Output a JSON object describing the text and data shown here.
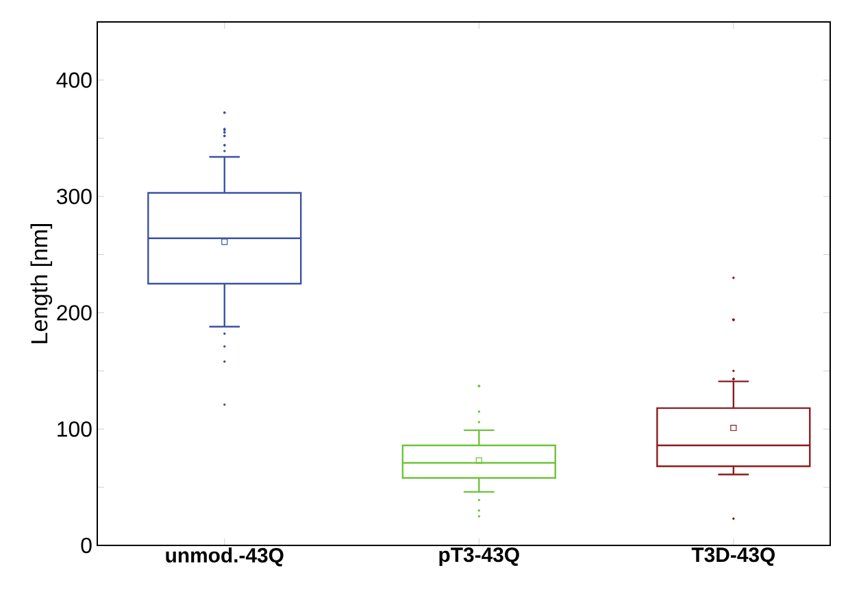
{
  "chart_data": {
    "type": "box",
    "ylabel": "Length [nm]",
    "categories": [
      "unmod.-43Q",
      "pT3-43Q",
      "T3D-43Q"
    ],
    "colors": [
      "#3a52a4",
      "#6cc43a",
      "#8b1a1a"
    ],
    "boxes": [
      {
        "low": 188,
        "q1": 225,
        "median": 264,
        "q3": 303,
        "high": 334,
        "mean": 261,
        "outliers": [
          372,
          372,
          358,
          357,
          355,
          355,
          352,
          352,
          344,
          344,
          339,
          182,
          171,
          158,
          121
        ]
      },
      {
        "low": 46,
        "q1": 58,
        "median": 71,
        "q3": 86,
        "high": 99,
        "mean": 73,
        "outliers": [
          137,
          137,
          137,
          115,
          106,
          39,
          30,
          25
        ]
      },
      {
        "low": 61,
        "q1": 68,
        "median": 86,
        "q3": 118,
        "high": 141,
        "mean": 101,
        "outliers": [
          230,
          194,
          194,
          194,
          194,
          194,
          150,
          143,
          143,
          143,
          23
        ]
      }
    ],
    "ylim": [
      0,
      450
    ],
    "yticks": [
      0,
      {
        "value": 50,
        "label": null
      },
      100,
      {
        "value": 150,
        "label": null
      },
      200,
      {
        "value": 250,
        "label": null
      },
      300,
      {
        "value": 350,
        "label": null
      },
      400
    ],
    "marker": "square"
  }
}
